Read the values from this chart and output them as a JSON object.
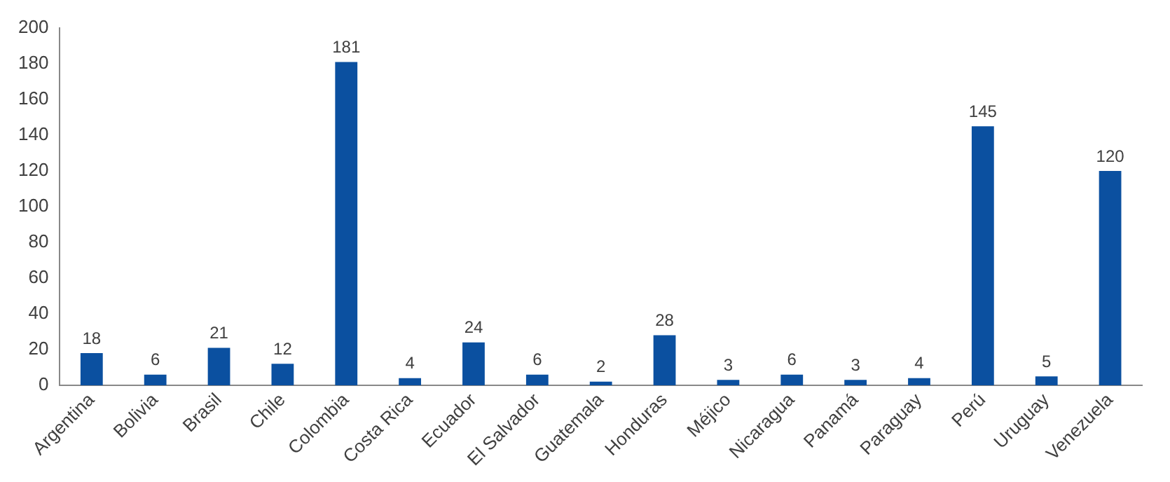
{
  "chart_data": {
    "type": "bar",
    "categories": [
      "Argentina",
      "Bolivia",
      "Brasil",
      "Chile",
      "Colombia",
      "Costa Rica",
      "Ecuador",
      "El Salvador",
      "Guatemala",
      "Honduras",
      "Méjico",
      "Nicaragua",
      "Panamá",
      "Paraguay",
      "Perú",
      "Uruguay",
      "Venezuela"
    ],
    "values": [
      18,
      6,
      21,
      12,
      181,
      4,
      24,
      6,
      2,
      28,
      3,
      6,
      3,
      4,
      145,
      5,
      120
    ],
    "color": "#0b50a0",
    "ylim": [
      0,
      200
    ],
    "yticks": [
      0,
      20,
      40,
      60,
      80,
      100,
      120,
      140,
      160,
      180,
      200
    ],
    "data_labels": true,
    "grid": false,
    "legend": false
  }
}
